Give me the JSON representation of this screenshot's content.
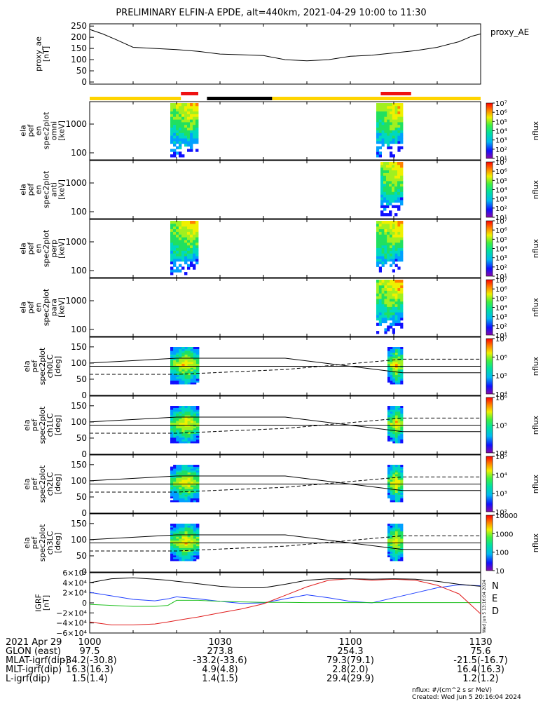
{
  "title": "PRELIMINARY ELFIN-A EPDE, alt=440km, 2021-04-29 10:00 to 11:30",
  "colors": {
    "bar_yellow": "#ffd400",
    "bar_red": "#ee1111",
    "bar_black": "#000000",
    "north": "#1f3fff",
    "east": "#20c020",
    "down": "#e01b1b"
  },
  "top_bar": [
    {
      "color": "yellow",
      "from": "1000",
      "to": "1021"
    },
    {
      "color": "red",
      "from": "1021",
      "to": "1025",
      "row": "upper"
    },
    {
      "color": "black",
      "from": "1027",
      "to": "1042"
    },
    {
      "color": "yellow",
      "from": "1042",
      "to": "1130"
    },
    {
      "color": "red",
      "from": "1107",
      "to": "1114",
      "row": "upper"
    }
  ],
  "time_axis": {
    "ticks": [
      "1000",
      "1030",
      "1100",
      "1130"
    ]
  },
  "chart_data": [
    {
      "type": "line",
      "title": "",
      "ylabel_lines": [
        "proxy_ae",
        "[nT]"
      ],
      "series_label": "proxy_AE",
      "yticks": [
        "0",
        "50",
        "100",
        "150",
        "200",
        "250"
      ],
      "ylim": [
        0,
        260
      ],
      "x_minutes": [
        0,
        3,
        6,
        10,
        15,
        20,
        25,
        30,
        35,
        40,
        45,
        50,
        55,
        60,
        65,
        70,
        75,
        80,
        85,
        88,
        90
      ],
      "values": [
        235,
        215,
        190,
        155,
        150,
        145,
        137,
        125,
        122,
        118,
        100,
        95,
        100,
        115,
        120,
        130,
        140,
        155,
        180,
        205,
        215
      ]
    },
    {
      "type": "heatmap",
      "ylabel_lines": [
        "ela",
        "pef",
        "en",
        "spec2plot",
        "omni",
        "[keV]"
      ],
      "yticks": [
        "100",
        "1000"
      ],
      "cbar_label": "nflux",
      "cbar_ticks": [
        "10¹",
        "10²",
        "10³",
        "10⁴",
        "10⁵",
        "10⁶",
        "10⁷"
      ]
    },
    {
      "type": "heatmap",
      "ylabel_lines": [
        "ela",
        "pef",
        "en",
        "spec2plot",
        "anti",
        "[keV]"
      ],
      "yticks": [
        "100",
        "1000"
      ],
      "cbar_label": "nflux",
      "cbar_ticks": [
        "10¹",
        "10²",
        "10³",
        "10⁴",
        "10⁵",
        "10⁶",
        "10⁷"
      ]
    },
    {
      "type": "heatmap",
      "ylabel_lines": [
        "ela",
        "pef",
        "en",
        "spec2plot",
        "perp",
        "[keV]"
      ],
      "yticks": [
        "100",
        "1000"
      ],
      "cbar_label": "nflux",
      "cbar_ticks": [
        "10¹",
        "10²",
        "10³",
        "10⁴",
        "10⁵",
        "10⁶",
        "10⁷"
      ]
    },
    {
      "type": "heatmap",
      "ylabel_lines": [
        "ela",
        "pef",
        "en",
        "spec2plot",
        "para",
        "[keV]"
      ],
      "yticks": [
        "100",
        "1000"
      ],
      "cbar_label": "nflux",
      "cbar_ticks": [
        "10¹",
        "10²",
        "10³",
        "10⁴",
        "10⁵",
        "10⁶",
        "10⁷"
      ]
    },
    {
      "type": "heatmap",
      "ylabel_lines": [
        "ela",
        "pef",
        "spec2plot",
        "ch0LC",
        "[deg]"
      ],
      "yticks": [
        "0",
        "50",
        "100",
        "150"
      ],
      "ylim": [
        0,
        180
      ],
      "cbar_label": "nflux",
      "cbar_ticks": [
        "10⁴",
        "10⁵",
        "10⁶",
        "10⁷"
      ]
    },
    {
      "type": "heatmap",
      "ylabel_lines": [
        "ela",
        "pef",
        "spec2plot",
        "ch1LC",
        "[deg]"
      ],
      "yticks": [
        "0",
        "50",
        "100",
        "150"
      ],
      "ylim": [
        0,
        180
      ],
      "cbar_label": "nflux",
      "cbar_ticks": [
        "10⁴",
        "10⁵",
        "10⁶"
      ]
    },
    {
      "type": "heatmap",
      "ylabel_lines": [
        "ela",
        "pef",
        "spec2plot",
        "ch2LC",
        "[deg]"
      ],
      "yticks": [
        "0",
        "50",
        "100",
        "150"
      ],
      "ylim": [
        0,
        180
      ],
      "cbar_label": "nflux",
      "cbar_ticks": [
        "10²",
        "10³",
        "10⁴",
        "10⁵"
      ]
    },
    {
      "type": "heatmap",
      "ylabel_lines": [
        "ela",
        "pef",
        "spec2plot",
        "ch3LC",
        "[deg]"
      ],
      "yticks": [
        "0",
        "50",
        "100",
        "150"
      ],
      "ylim": [
        0,
        180
      ],
      "cbar_label": "nflux",
      "cbar_ticks": [
        "10",
        "100",
        "1000",
        "10000"
      ]
    },
    {
      "type": "line",
      "ylabel_lines": [
        "IGRF",
        "[nT]"
      ],
      "yticks": [
        "−6×10⁴",
        "−4×10⁴",
        "−2×10⁴",
        "0",
        "2×10⁴",
        "4×10⁴",
        "6×10⁴"
      ],
      "ylim": [
        -60000,
        60000
      ],
      "x_minutes": [
        0,
        5,
        10,
        15,
        18,
        20,
        25,
        30,
        35,
        40,
        45,
        50,
        55,
        60,
        65,
        70,
        75,
        80,
        85,
        90
      ],
      "series": [
        {
          "name": "N",
          "color": "#1f3fff",
          "values": [
            21000,
            14000,
            7000,
            4000,
            8000,
            12000,
            8000,
            3000,
            -1000,
            0,
            8000,
            16000,
            10000,
            3000,
            0,
            10000,
            20000,
            30000,
            36000,
            34000
          ]
        },
        {
          "name": "E",
          "color": "#20c020",
          "values": [
            -3000,
            -5000,
            -7000,
            -7000,
            -5000,
            5000,
            5000,
            3000,
            2000,
            1000,
            1000,
            500,
            500,
            500,
            500,
            500,
            500,
            500,
            500,
            500
          ]
        },
        {
          "name": "D",
          "color": "#e01b1b",
          "values": [
            -38000,
            -44000,
            -44000,
            -42000,
            -38000,
            -35000,
            -28000,
            -20000,
            -12000,
            -2000,
            15000,
            32000,
            45000,
            48000,
            45000,
            47000,
            45000,
            35000,
            18000,
            -22000
          ]
        },
        {
          "name": "",
          "color": "#000000",
          "values": [
            40000,
            48000,
            50000,
            47000,
            45000,
            43000,
            38000,
            33000,
            30000,
            30000,
            37000,
            45000,
            48000,
            48000,
            47000,
            48000,
            47000,
            43000,
            37000,
            33000
          ]
        }
      ]
    }
  ],
  "footer": {
    "rows": [
      {
        "label": "2021 Apr 29",
        "values": [
          "1000",
          "1030",
          "1100",
          "1130"
        ]
      },
      {
        "label": "GLON (east)",
        "values": [
          "97.5",
          "273.8",
          "254.3",
          "75.6"
        ]
      },
      {
        "label": "MLAT-igrf(dip)",
        "values": [
          "-34.2(-30.8)",
          "-33.2(-33.6)",
          "79.3(79.1)",
          "-21.5(-16.7)"
        ]
      },
      {
        "label": "MLT-igrf(dip)",
        "values": [
          "16.3(16.3)",
          "4.9(4.8)",
          "2.8(2.0)",
          "16.4(16.3)"
        ]
      },
      {
        "label": "L-igrf(dip)",
        "values": [
          "1.5(1.4)",
          "1.4(1.5)",
          "29.4(29.9)",
          "1.2(1.2)"
        ]
      }
    ],
    "units_note": "nflux: #/(cm^2 s sr MeV)",
    "created": "Created: Wed Jun  5 20:16:04 2024",
    "side_stamp": "Wed Jun  5 13:16:04 2024"
  }
}
